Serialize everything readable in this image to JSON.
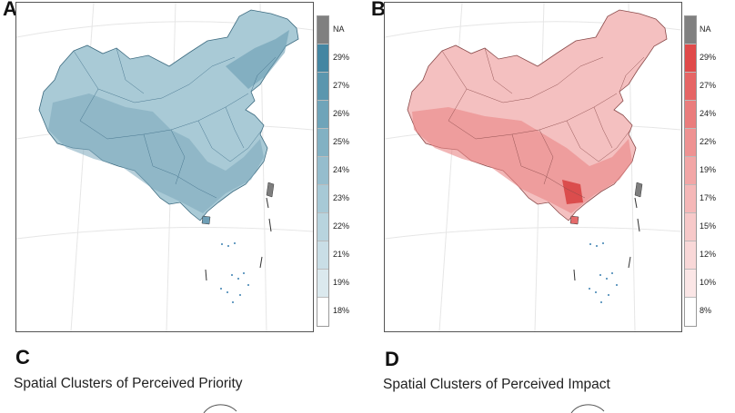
{
  "panels": [
    {
      "letter": "A",
      "palette": "blue",
      "legend": [
        "NA",
        "29%",
        "27%",
        "26%",
        "25%",
        "24%",
        "23%",
        "22%",
        "21%",
        "19%",
        "18%"
      ],
      "legend_colors": [
        "#808080",
        "#4486a2",
        "#5b96ae",
        "#6fa4b9",
        "#82b1c3",
        "#95bdcd",
        "#a7c9d6",
        "#b8d4de",
        "#c9dee6",
        "#dbe9ee",
        "#ffffff"
      ]
    },
    {
      "letter": "B",
      "palette": "red",
      "legend": [
        "NA",
        "29%",
        "27%",
        "24%",
        "22%",
        "19%",
        "17%",
        "15%",
        "12%",
        "10%",
        "8%"
      ],
      "legend_colors": [
        "#808080",
        "#e04a4a",
        "#e66565",
        "#ea7c7c",
        "#ee9292",
        "#f2a6a6",
        "#f5b8b8",
        "#f7c9c9",
        "#f9d8d8",
        "#fbe6e6",
        "#ffffff"
      ]
    }
  ],
  "lower": [
    {
      "letter": "C",
      "subtitle": "Spatial Clusters of Perceived Priority"
    },
    {
      "letter": "D",
      "subtitle": "Spatial Clusters of Perceived Impact"
    }
  ]
}
